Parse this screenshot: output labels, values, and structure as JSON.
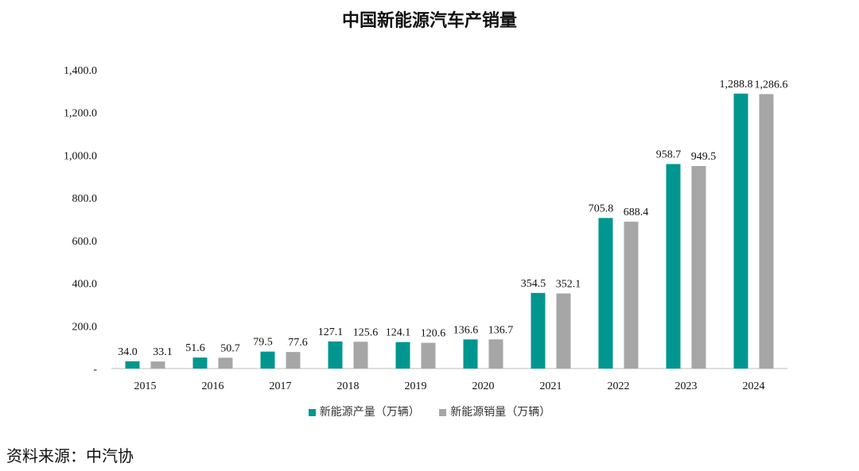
{
  "chart_data": {
    "type": "bar",
    "title": "中国新能源汽车产销量",
    "categories": [
      "2015",
      "2016",
      "2017",
      "2018",
      "2019",
      "2020",
      "2021",
      "2022",
      "2023",
      "2024"
    ],
    "series": [
      {
        "name": "新能源产量（万辆）",
        "color": "#009690",
        "values": [
          34.0,
          51.6,
          79.5,
          127.1,
          124.1,
          136.6,
          354.5,
          705.8,
          958.7,
          1288.8
        ],
        "labels": [
          "34.0",
          "51.6",
          "79.5",
          "127.1",
          "124.1",
          "136.6",
          "354.5",
          "705.8",
          "958.7",
          "1,288.8"
        ]
      },
      {
        "name": "新能源销量（万辆）",
        "color": "#a6a6a6",
        "values": [
          33.1,
          50.7,
          77.6,
          125.6,
          120.6,
          136.7,
          352.1,
          688.4,
          949.5,
          1286.6
        ],
        "labels": [
          "33.1",
          "50.7",
          "77.6",
          "125.6",
          "120.6",
          "136.7",
          "352.1",
          "688.4",
          "949.5",
          "1,286.6"
        ]
      }
    ],
    "ylim": [
      0,
      1400
    ],
    "yticks": [
      0,
      200,
      400,
      600,
      800,
      1000,
      1200,
      1400
    ],
    "ytick_labels": [
      "-",
      "200.0",
      "400.0",
      "600.0",
      "800.0",
      "1,000.0",
      "1,200.0",
      "1,400.0"
    ],
    "legend_position": "bottom",
    "grid": false
  },
  "source_text": "资料来源：中汽协"
}
